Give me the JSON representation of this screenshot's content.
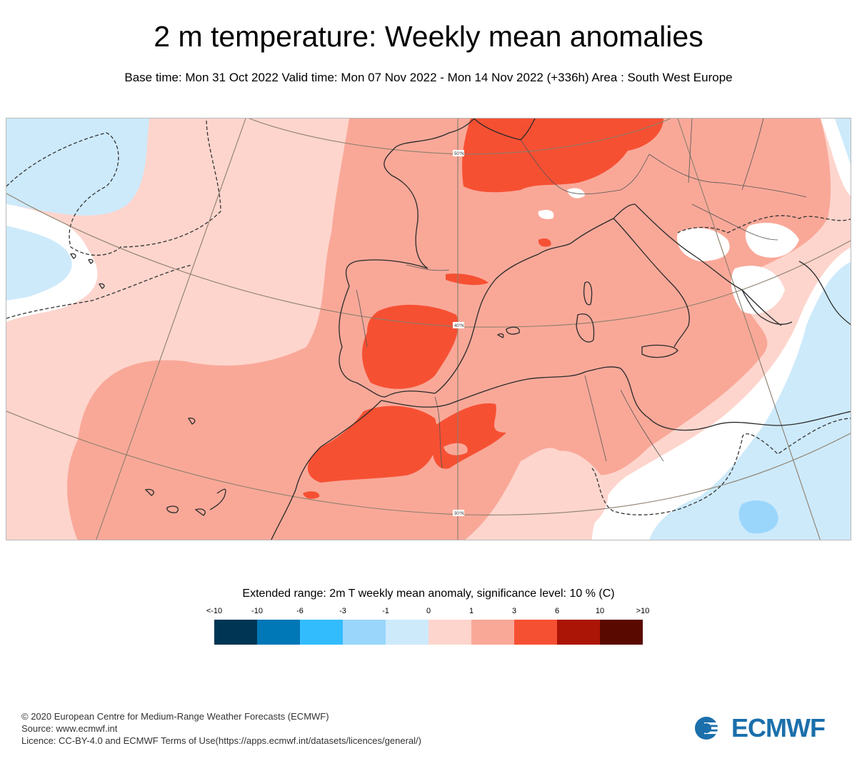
{
  "header": {
    "title": "2 m temperature: Weekly mean anomalies",
    "subtitle": "Base time: Mon 31 Oct 2022 Valid time: Mon 07 Nov 2022 - Mon 14 Nov 2022 (+336h) Area : South West Europe"
  },
  "map": {
    "area": "South West Europe",
    "projection": "conic",
    "latitude_labels": [
      "50°N",
      "40°N",
      "30°N"
    ],
    "colors": {
      "sea_light_blue": "#cdeafb",
      "below_minus1": "#9ad6fc",
      "near_zero": "#ffffff",
      "slightly_warm": "#fdd5cd",
      "warm": "#f9a898",
      "very_warm": "#f65033",
      "coastline": "#2a2a2a",
      "graticule": "#8c7e6c"
    }
  },
  "legend": {
    "title": "Extended range: 2m T weekly mean anomaly, significance level: 10 % (C)",
    "labels": [
      "<-10",
      "-10",
      "-6",
      "-3",
      "-1",
      "0",
      "1",
      "3",
      "6",
      "10",
      ">10"
    ],
    "colors": [
      "#003553",
      "#0077b6",
      "#33bcfd",
      "#9ad6fc",
      "#cdeafb",
      "#fdd5cd",
      "#f9a898",
      "#f65033",
      "#ab1505",
      "#5a0900"
    ]
  },
  "footer": {
    "copyright": "© 2020 European Centre for Medium-Range Weather Forecasts (ECMWF)",
    "source": "Source: www.ecmwf.int",
    "licence": "Licence: CC-BY-4.0 and ECMWF Terms of Use(https://apps.ecmwf.int/datasets/licences/general/)"
  },
  "logo": {
    "text": "ECMWF",
    "color": "#1b6fab"
  }
}
